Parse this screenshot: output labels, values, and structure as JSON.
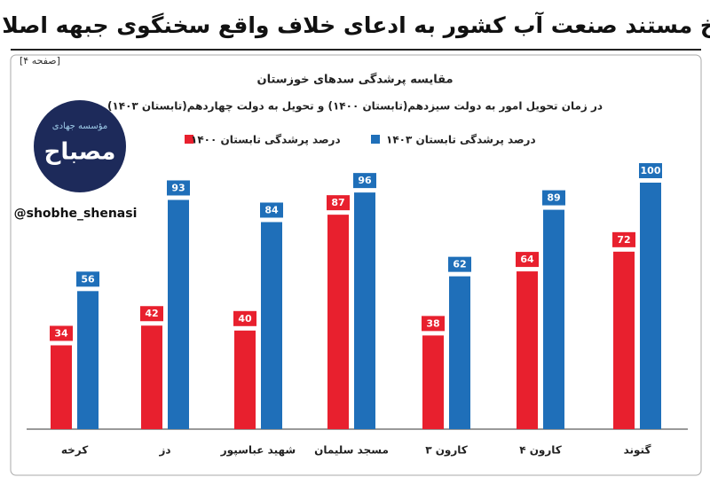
{
  "header": {
    "title": "پاسخ مستند صنعت آب کشور به ادعای خلاف واقع سخنگوی جبهه اصلاحات",
    "page": "[صفحه ۴]"
  },
  "logo": {
    "name": "مصباح",
    "org": "مؤسسه جهادی",
    "handle": "@shobhe_shenasi"
  },
  "chart_data": {
    "type": "bar",
    "title": "مقایسه پرشدگی سدهای خوزستان",
    "subtitle": "در زمان تحویل امور به دولت سیزدهم(تابستان ۱۴۰۰) و تحویل به دولت چهاردهم(تابستان ۱۴۰۳)",
    "categories": [
      "کرخه",
      "دز",
      "شهید عباسپور",
      "مسجد سلیمان",
      "کارون ۳",
      "کارون ۴",
      "گتوند"
    ],
    "series": [
      {
        "name": "درصد پرشدگی تابستان ۱۴۰۰",
        "color": "#e8202e",
        "values": [
          34,
          42,
          40,
          87,
          38,
          64,
          72
        ]
      },
      {
        "name": "درصد پرشدگی تابستان ۱۴۰۳",
        "color": "#1f6fb9",
        "values": [
          56,
          93,
          84,
          96,
          62,
          89,
          100
        ]
      }
    ]
  }
}
